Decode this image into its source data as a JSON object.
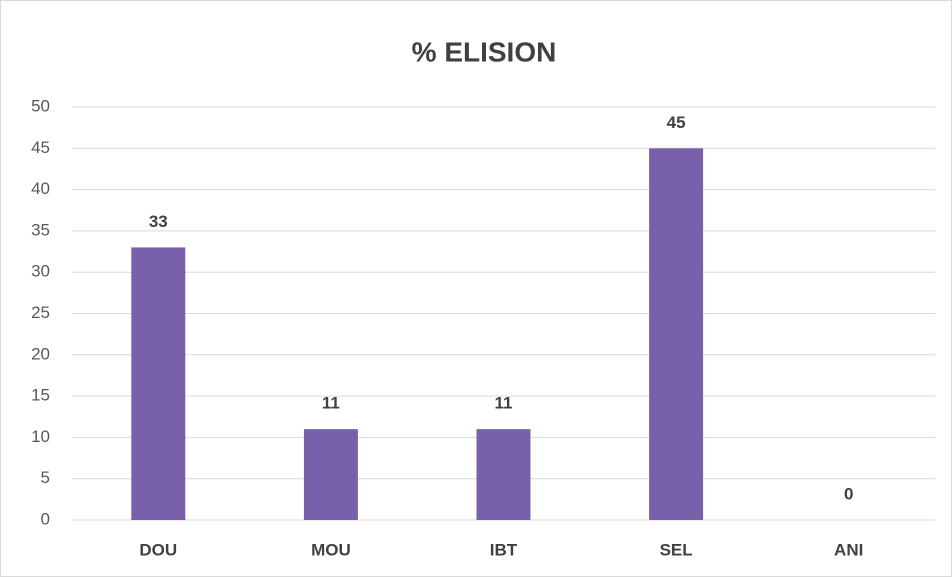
{
  "chart_data": {
    "type": "bar",
    "title": "% ELISION",
    "categories": [
      "DOU",
      "MOU",
      "IBT",
      "SEL",
      "ANI"
    ],
    "values": [
      33,
      11,
      11,
      45,
      0
    ],
    "color": "#7860aa",
    "ylim": [
      0,
      50
    ],
    "yticks": [
      0,
      5,
      10,
      15,
      20,
      25,
      30,
      35,
      40,
      45,
      50
    ],
    "grid": true,
    "data_labels": true
  }
}
